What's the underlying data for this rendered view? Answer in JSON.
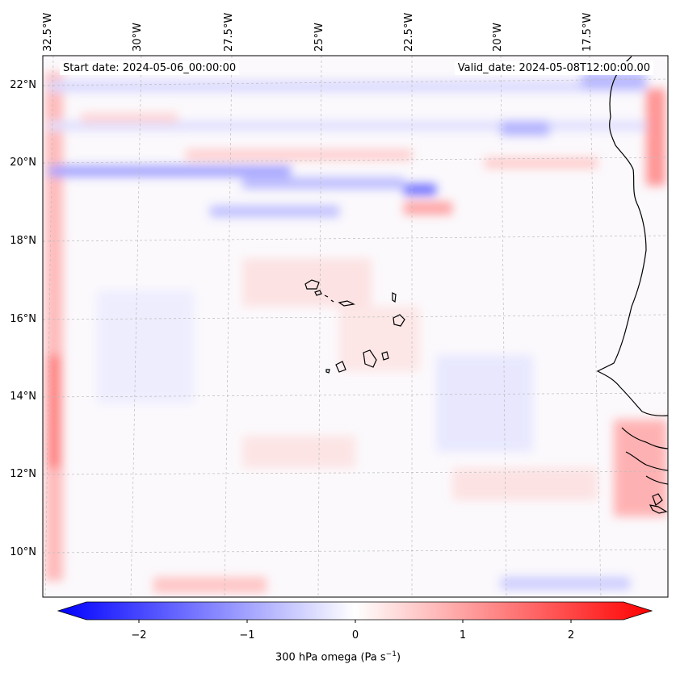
{
  "map": {
    "start_date": "Start date: 2024-05-06_00:00:00",
    "valid_date": "Valid_date: 2024-05-08T12:00:00.00",
    "lat_labels": [
      "22°N",
      "20°N",
      "18°N",
      "16°N",
      "14°N",
      "12°N",
      "10°N"
    ],
    "lon_labels": [
      "32.5°W",
      "30°W",
      "27.5°W",
      "25°W",
      "22.5°W",
      "20°W",
      "17.5°W"
    ]
  },
  "colorbar": {
    "ticks": [
      "−2",
      "−1",
      "0",
      "1",
      "2"
    ],
    "label": "300 hPa omega (Pa s",
    "label_sup": "−1",
    "label_end": ")",
    "min_color": "#0000ff",
    "mid_color": "#ffffff",
    "max_color": "#ff0000"
  }
}
